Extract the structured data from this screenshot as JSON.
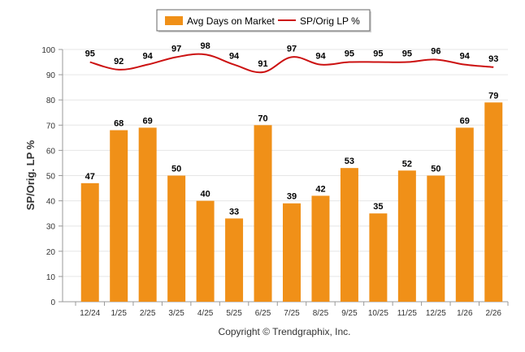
{
  "chart_data": {
    "type": "bar",
    "categories": [
      "12/24",
      "1/25",
      "2/25",
      "3/25",
      "4/25",
      "5/25",
      "6/25",
      "7/25",
      "8/25",
      "9/25",
      "10/25",
      "11/25",
      "12/25",
      "1/26",
      "2/26"
    ],
    "series": [
      {
        "name": "Avg Days on Market",
        "kind": "bar",
        "color": "#f09018",
        "values": [
          47,
          68,
          69,
          50,
          40,
          33,
          70,
          39,
          42,
          53,
          35,
          52,
          50,
          69,
          79
        ]
      },
      {
        "name": "SP/Orig LP %",
        "kind": "line",
        "color": "#cc1111",
        "values": [
          95,
          92,
          94,
          97,
          98,
          94,
          91,
          97,
          94,
          95,
          95,
          95,
          96,
          94,
          93
        ]
      }
    ],
    "title": "",
    "xlabel": "",
    "ylabel": "SP/Orig. LP %",
    "ylim": [
      0,
      100
    ],
    "yticks": [
      0,
      10,
      20,
      30,
      40,
      50,
      60,
      70,
      80,
      90,
      100
    ],
    "grid": true,
    "legend_position": "top-center",
    "credit": "Copyright © Trendgraphix, Inc."
  }
}
